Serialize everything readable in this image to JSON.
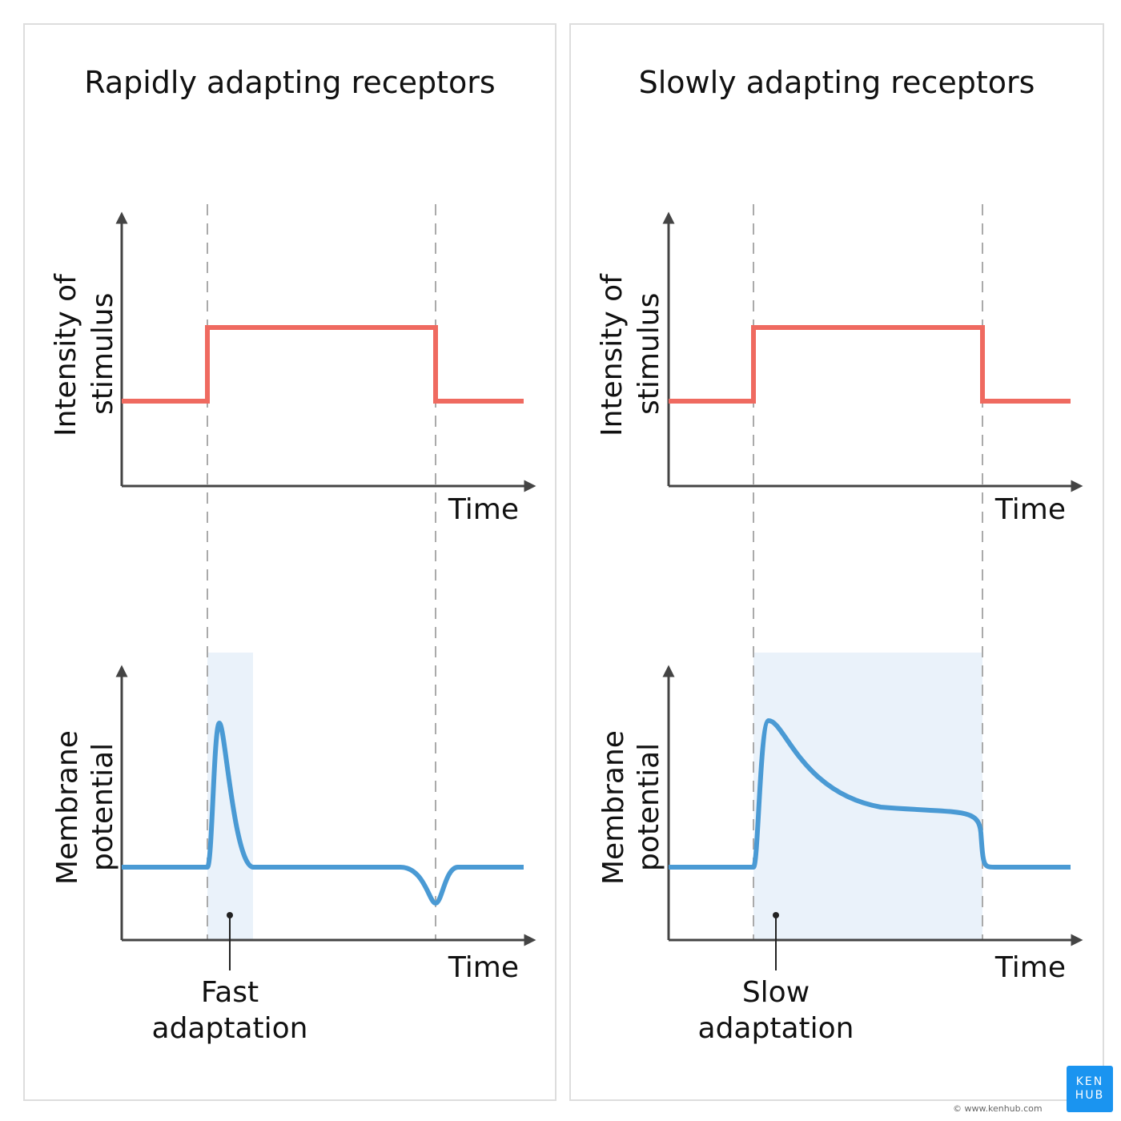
{
  "panels": [
    {
      "title": "Rapidly adapting receptors",
      "top_ylabel": [
        "Intensity of",
        "stimulus"
      ],
      "bottom_ylabel": [
        "Membrane",
        "potential"
      ],
      "xlabel": "Time",
      "annotation": [
        "Fast",
        "adaptation"
      ]
    },
    {
      "title": "Slowly adapting receptors",
      "top_ylabel": [
        "Intensity of",
        "stimulus"
      ],
      "bottom_ylabel": [
        "Membrane",
        "potential"
      ],
      "xlabel": "Time",
      "annotation": [
        "Slow",
        "adaptation"
      ]
    }
  ],
  "colors": {
    "stimulus": "#ef6a60",
    "potential": "#4a9ad4",
    "highlight": "#eaf2fa",
    "axis": "#444444",
    "logo": "#1a94f0"
  },
  "logo": {
    "line1": "KEN",
    "line2": "HUB"
  },
  "copyright": "© www.kenhub.com"
}
